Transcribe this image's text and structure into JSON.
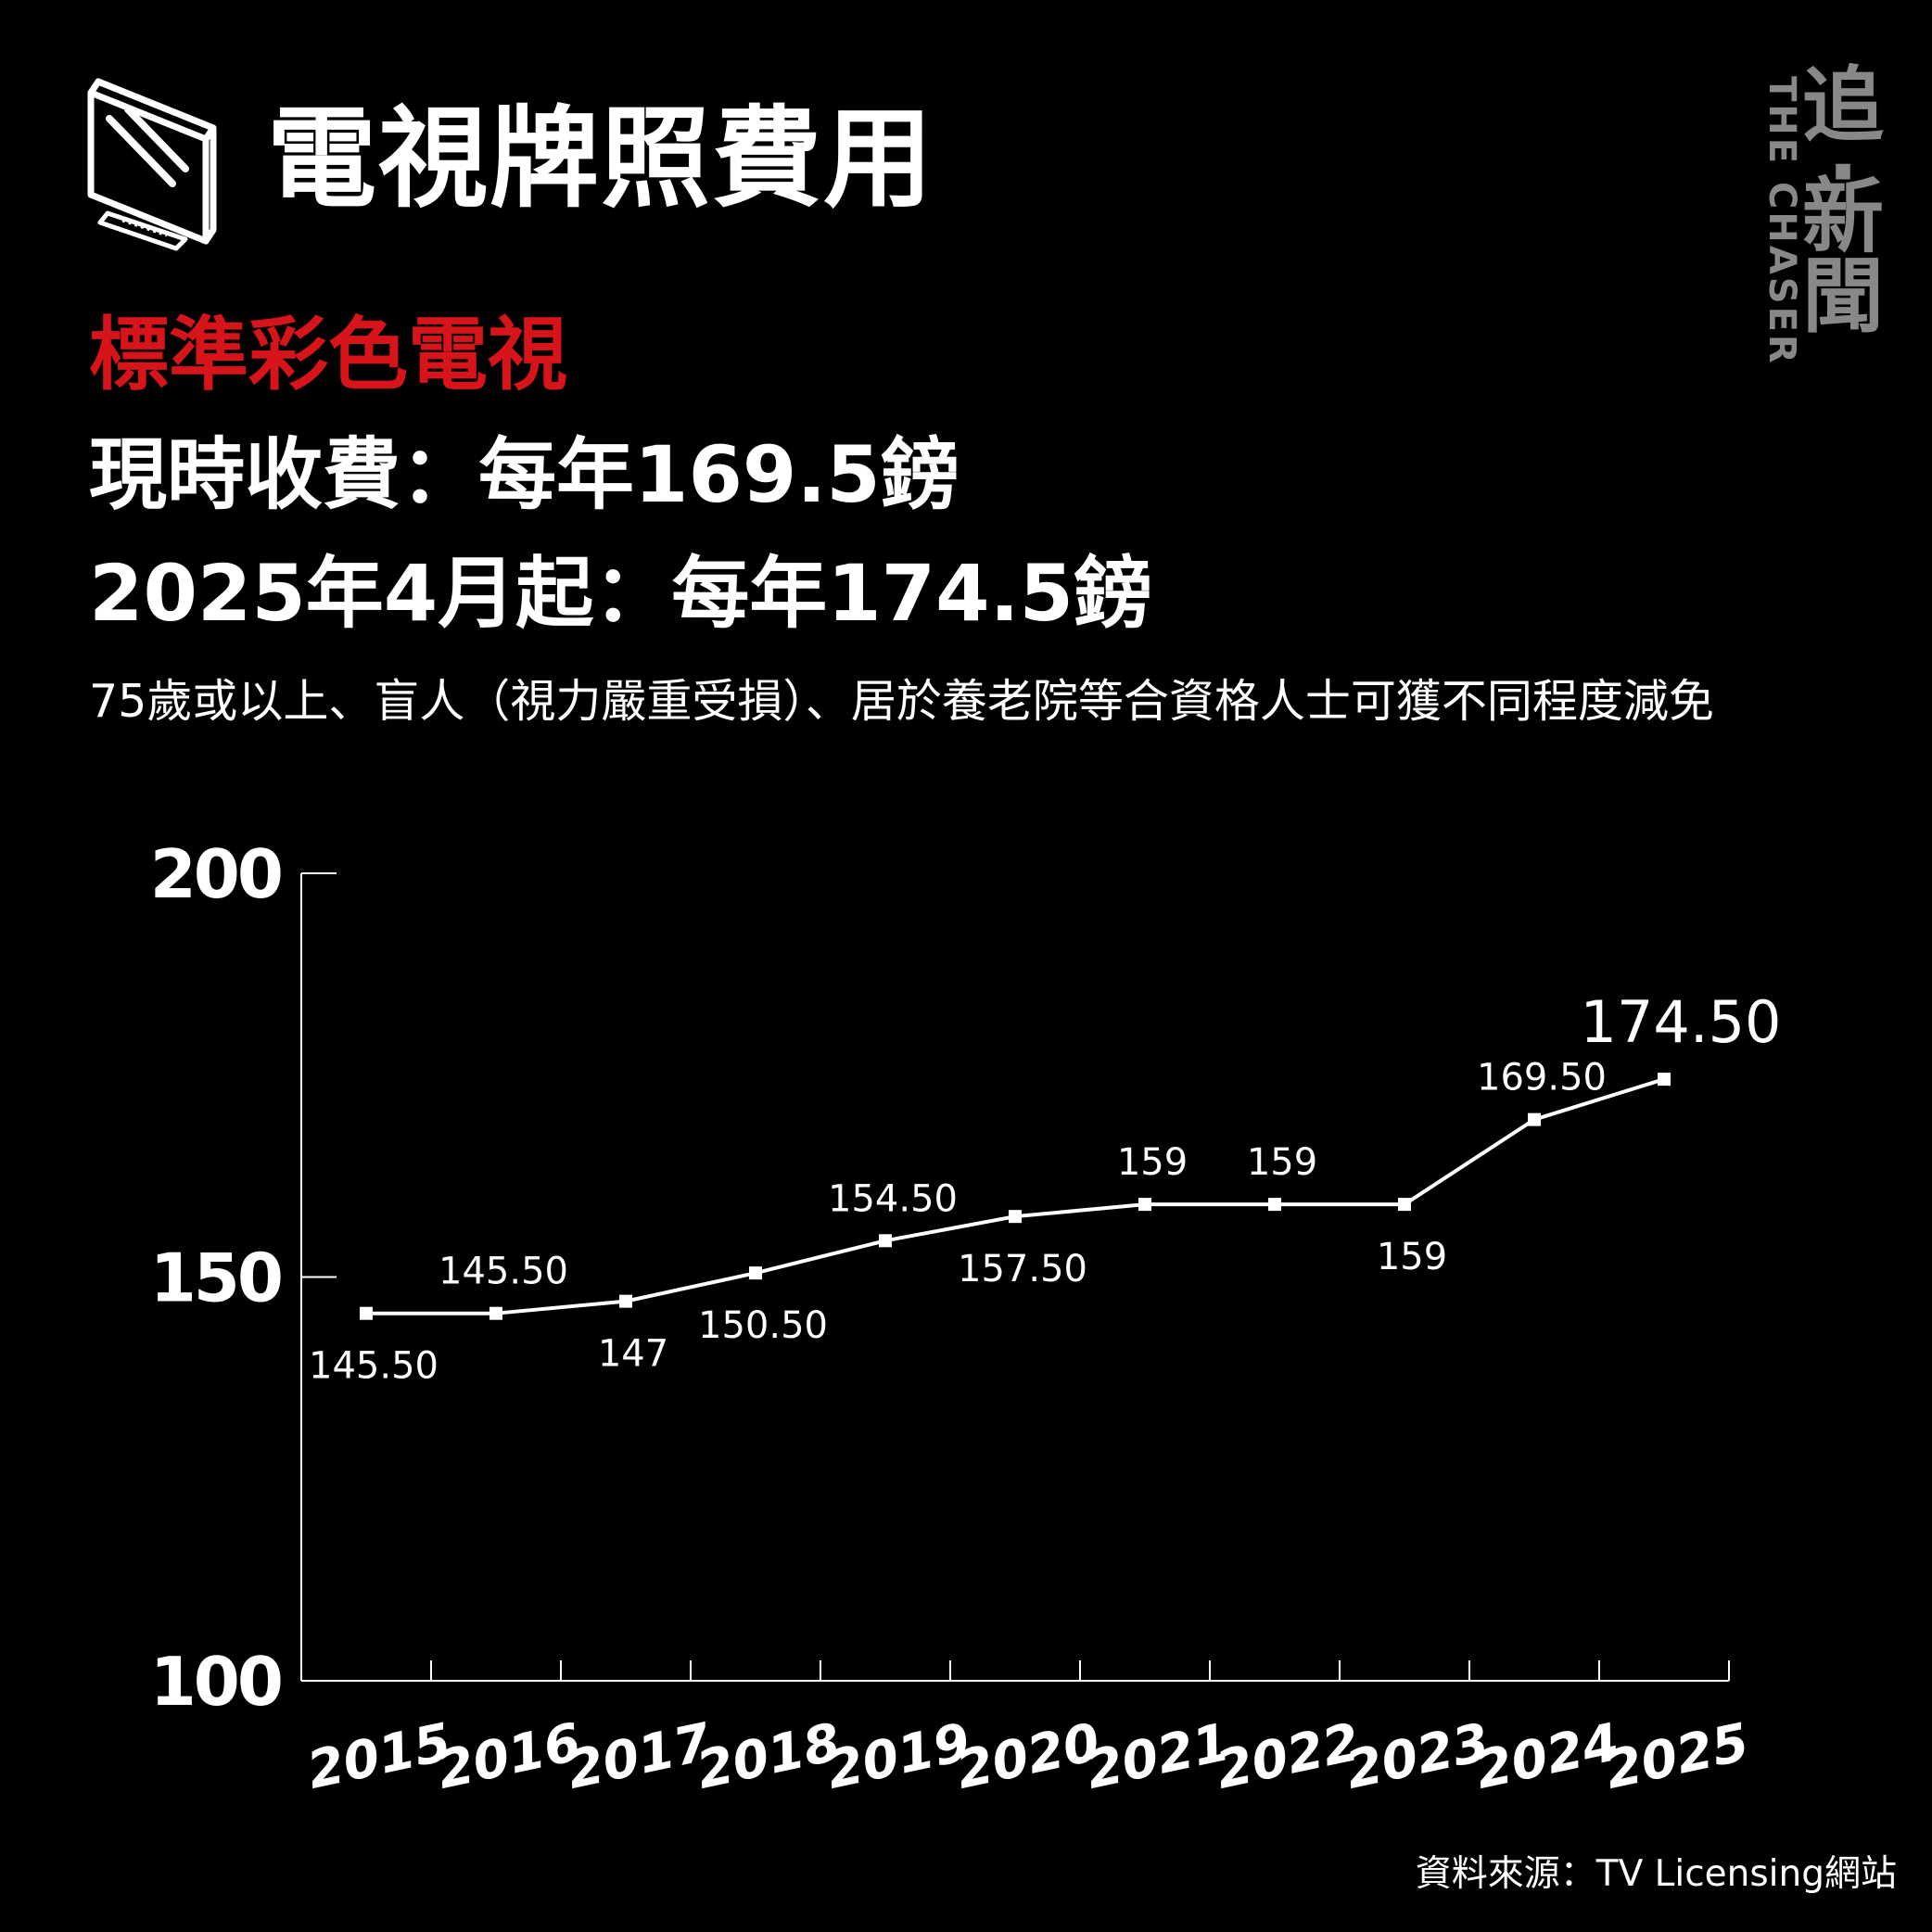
{
  "header": {
    "title": "電視牌照費用",
    "subtitle": "標準彩色電視",
    "current_fee": "現時收費：每年169.5鎊",
    "new_fee": "2025年4月起：每年174.5鎊",
    "note": "75歲或以上、盲人（視力嚴重受損）、居於養老院等合資格人士可獲不同程度減免"
  },
  "logo": {
    "cn_top": "追",
    "cn_dot": "·",
    "cn_mid": "新",
    "cn_bottom": "聞",
    "en": "THE CHASER"
  },
  "icons": {
    "header_icon": "tv-icon"
  },
  "colors": {
    "background": "#000000",
    "accent": "#d8141b",
    "line": "#ffffff",
    "logo": "#888888"
  },
  "source": "資料來源：TV Licensing網站",
  "chart_data": {
    "type": "line",
    "x": [
      "2015",
      "2016",
      "2017",
      "2018",
      "2019",
      "2020",
      "2021",
      "2022",
      "2023",
      "2024",
      "2025"
    ],
    "series": [
      {
        "values": [
          145.5,
          145.5,
          147,
          150.5,
          154.5,
          157.5,
          159,
          159,
          159,
          169.5,
          174.5
        ],
        "labels": [
          "145.50",
          "145.50",
          "147",
          "150.50",
          "154.50",
          "157.50",
          "159",
          "159",
          "159",
          "169.50",
          "174.50"
        ]
      }
    ],
    "ylim": [
      100,
      200
    ],
    "yticks": [
      "100",
      "150",
      "200"
    ],
    "grid": false,
    "legend": "none"
  }
}
